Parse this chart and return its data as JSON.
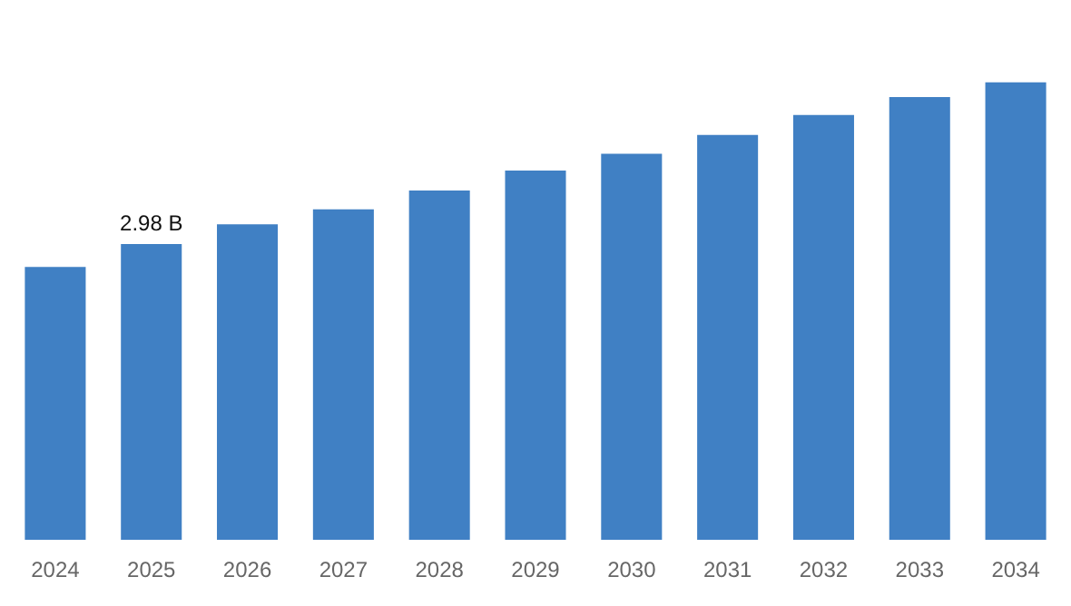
{
  "chart_data": {
    "type": "bar",
    "tick_labels": "x",
    "categories": [
      "2024",
      "2025",
      "2026",
      "2027",
      "2028",
      "2029",
      "2030",
      "2031",
      "2032",
      "2033",
      "2034"
    ],
    "values": [
      2.75,
      2.98,
      3.18,
      3.33,
      3.52,
      3.72,
      3.89,
      4.08,
      4.28,
      4.46,
      4.61
    ],
    "value_labels": [
      null,
      "2.98 B",
      null,
      null,
      null,
      null,
      null,
      null,
      null,
      null,
      null
    ],
    "color": "#4080c4",
    "grid": false,
    "legend": false
  }
}
